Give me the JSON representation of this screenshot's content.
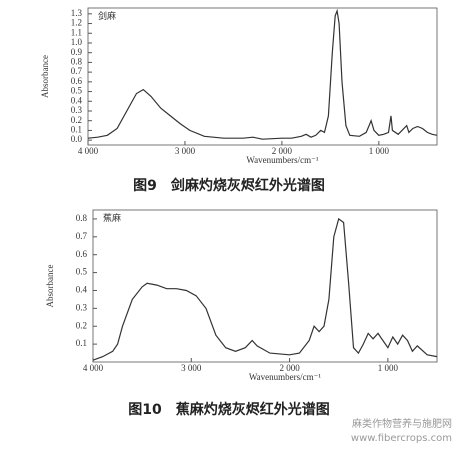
{
  "chart_data": [
    {
      "type": "line",
      "title": "图9　剑麻灼烧灰烬红外光谱图",
      "annotation": "剑麻",
      "xlabel": "Wavenumbers/cm⁻¹",
      "ylabel": "Absorbance",
      "xlim": [
        4000,
        400
      ],
      "ylim": [
        -0.05,
        1.36
      ],
      "xticks": [
        {
          "value": 4000,
          "label": "4 000"
        },
        {
          "value": 3000,
          "label": "3 000"
        },
        {
          "value": 2000,
          "label": "2 000"
        },
        {
          "value": 1000,
          "label": "1 000"
        }
      ],
      "yticks": [
        {
          "value": 0,
          "label": "0.0"
        },
        0.1,
        0.2,
        0.3,
        0.4,
        0.5,
        0.6,
        0.7,
        0.8,
        0.9,
        {
          "value": 1,
          "label": "1.0"
        },
        1.1,
        1.2,
        1.3
      ],
      "color": "#333333",
      "x": [
        4000,
        3900,
        3800,
        3700,
        3600,
        3500,
        3430,
        3350,
        3250,
        3150,
        3050,
        2950,
        2800,
        2600,
        2400,
        2300,
        2200,
        2000,
        1900,
        1800,
        1750,
        1700,
        1650,
        1600,
        1560,
        1520,
        1480,
        1450,
        1430,
        1410,
        1380,
        1340,
        1300,
        1200,
        1130,
        1100,
        1080,
        1050,
        1000,
        950,
        900,
        875,
        860,
        800,
        713,
        690,
        650,
        600,
        550,
        500,
        450,
        400
      ],
      "values": [
        0.02,
        0.03,
        0.05,
        0.12,
        0.3,
        0.48,
        0.52,
        0.45,
        0.33,
        0.25,
        0.17,
        0.1,
        0.04,
        0.02,
        0.02,
        0.03,
        0.01,
        0.02,
        0.02,
        0.04,
        0.06,
        0.03,
        0.05,
        0.1,
        0.08,
        0.25,
        0.9,
        1.28,
        1.33,
        1.2,
        0.6,
        0.15,
        0.05,
        0.04,
        0.08,
        0.15,
        0.2,
        0.1,
        0.05,
        0.06,
        0.08,
        0.25,
        0.1,
        0.06,
        0.15,
        0.08,
        0.12,
        0.14,
        0.12,
        0.08,
        0.06,
        0.05
      ]
    },
    {
      "type": "line",
      "title": "图10　蕉麻灼烧灰烬红外光谱图",
      "annotation": "蕉麻",
      "xlabel": "Wavenumbers/cm⁻¹",
      "ylabel": "Absorbance",
      "xlim": [
        4000,
        500
      ],
      "ylim": [
        0,
        0.85
      ],
      "xticks": [
        {
          "value": 4000,
          "label": "4 000"
        },
        {
          "value": 3000,
          "label": "3 000"
        },
        {
          "value": 2000,
          "label": "2 000"
        },
        {
          "value": 1000,
          "label": "1 000"
        }
      ],
      "yticks": [
        0.1,
        0.2,
        0.3,
        0.4,
        0.5,
        0.6,
        0.7,
        0.8
      ],
      "color": "#333333",
      "x": [
        4000,
        3900,
        3800,
        3750,
        3700,
        3600,
        3500,
        3450,
        3350,
        3250,
        3150,
        3050,
        2950,
        2850,
        2750,
        2650,
        2550,
        2450,
        2380,
        2330,
        2200,
        2000,
        1900,
        1800,
        1750,
        1700,
        1650,
        1600,
        1550,
        1500,
        1450,
        1400,
        1350,
        1300,
        1250,
        1200,
        1150,
        1100,
        1050,
        1000,
        950,
        900,
        850,
        800,
        750,
        700,
        600,
        500
      ],
      "values": [
        0.01,
        0.03,
        0.06,
        0.1,
        0.2,
        0.35,
        0.42,
        0.44,
        0.43,
        0.41,
        0.41,
        0.4,
        0.37,
        0.3,
        0.15,
        0.08,
        0.06,
        0.08,
        0.12,
        0.09,
        0.05,
        0.04,
        0.05,
        0.12,
        0.2,
        0.17,
        0.2,
        0.35,
        0.7,
        0.8,
        0.78,
        0.45,
        0.08,
        0.05,
        0.1,
        0.16,
        0.13,
        0.16,
        0.12,
        0.08,
        0.14,
        0.1,
        0.15,
        0.12,
        0.06,
        0.09,
        0.04,
        0.03
      ]
    }
  ],
  "watermark": [
    "麻类作物营养与施肥网",
    "www.fibercrops.com"
  ]
}
